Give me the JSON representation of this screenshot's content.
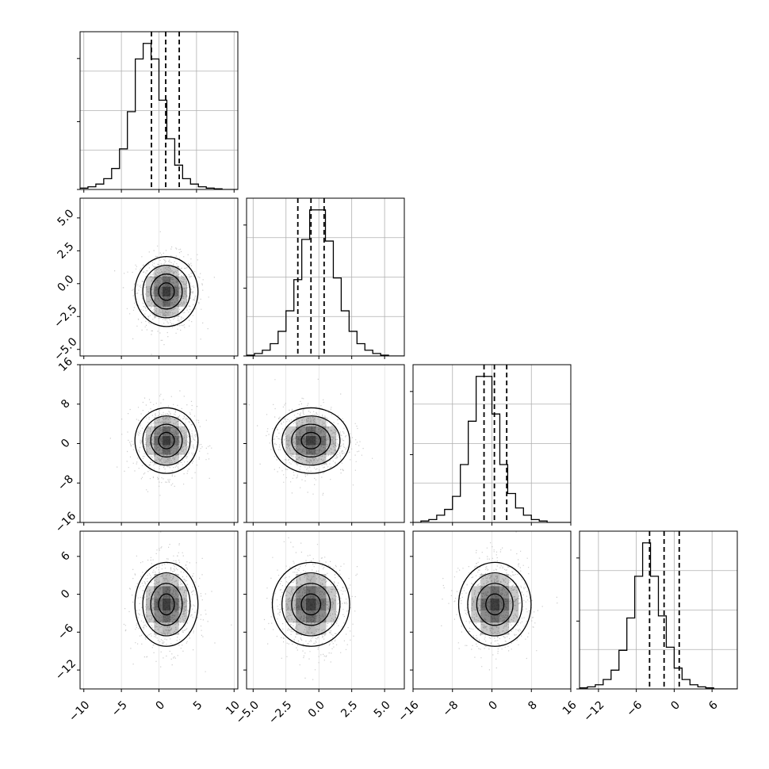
{
  "chart_data": {
    "type": "corner",
    "title": "",
    "n_params": 4,
    "params": [
      {
        "name": "",
        "range": [
          -10.5,
          10.5
        ],
        "ticks": [
          -10,
          -5,
          0,
          5,
          10
        ],
        "tick_labels": [
          "−10",
          "−5",
          "0",
          "5",
          "10"
        ],
        "quantiles": [
          -1.0,
          0.9,
          2.7
        ],
        "hist_bins": 20,
        "hist_counts": [
          2,
          4,
          8,
          16,
          31,
          60,
          115,
          193,
          216,
          193,
          132,
          75,
          36,
          16,
          8,
          4,
          2,
          1,
          0,
          0
        ]
      },
      {
        "name": "",
        "range": [
          -5.5,
          6.5
        ],
        "ticks": [
          -5.0,
          -2.5,
          0.0,
          2.5,
          5.0
        ],
        "tick_labels": [
          "−5.0",
          "−2.5",
          "0.0",
          "2.5",
          "5.0"
        ],
        "quantiles": [
          -1.6,
          -0.6,
          0.4
        ],
        "hist_bins": 20,
        "hist_counts": [
          1,
          3,
          7,
          15,
          30,
          55,
          93,
          142,
          178,
          178,
          140,
          95,
          55,
          30,
          15,
          7,
          3,
          1,
          0,
          0
        ]
      },
      {
        "name": "",
        "range": [
          -16,
          16
        ],
        "ticks": [
          -16,
          -8,
          0,
          8,
          16
        ],
        "tick_labels": [
          "−16",
          "−8",
          "0",
          "8",
          "16"
        ],
        "quantiles": [
          -1.6,
          0.5,
          3.0
        ],
        "hist_bins": 20,
        "hist_counts": [
          0,
          1,
          2,
          5,
          9,
          18,
          40,
          70,
          101,
          101,
          75,
          40,
          20,
          10,
          5,
          2,
          1,
          0,
          0,
          0
        ]
      },
      {
        "name": "",
        "range": [
          -15,
          10
        ],
        "ticks": [
          -12,
          -6,
          0,
          6
        ],
        "tick_labels": [
          "−12",
          "−6",
          "0",
          "6"
        ],
        "quantiles": [
          -3.9,
          -1.6,
          0.8
        ],
        "hist_bins": 20,
        "hist_counts": [
          1,
          2,
          4,
          9,
          18,
          37,
          68,
          108,
          140,
          108,
          70,
          40,
          20,
          9,
          4,
          2,
          1,
          0,
          0,
          0
        ]
      }
    ],
    "row_y_ranges": [
      null,
      [
        -5.5,
        6.5
      ],
      [
        -16,
        16
      ],
      [
        -15,
        10
      ]
    ],
    "row_y_ticks": [
      null,
      {
        "values": [
          -5.0,
          -2.5,
          0.0,
          2.5,
          5.0
        ],
        "labels": [
          "−5.0",
          "−2.5",
          "0.0",
          "2.5",
          "5.0"
        ]
      },
      {
        "values": [
          -16,
          -8,
          0,
          8,
          16
        ],
        "labels": [
          "−16",
          "−8",
          "0",
          "8",
          "16"
        ]
      },
      {
        "values": [
          -12,
          -6,
          0,
          6
        ],
        "labels": [
          "−12",
          "−6",
          "0",
          "6"
        ]
      }
    ],
    "means": [
      1.0,
      -0.6,
      0.6,
      -1.6
    ],
    "stds": [
      2.0,
      1.4,
      3.5,
      3.5
    ],
    "contour_levels_sigma": [
      0.5,
      1.0,
      1.5,
      2.0
    ],
    "grid": true,
    "colors": {
      "points": "#9a9a9a",
      "lines": "#000000",
      "grid": "#b0b0b0",
      "density": "#000000"
    }
  }
}
